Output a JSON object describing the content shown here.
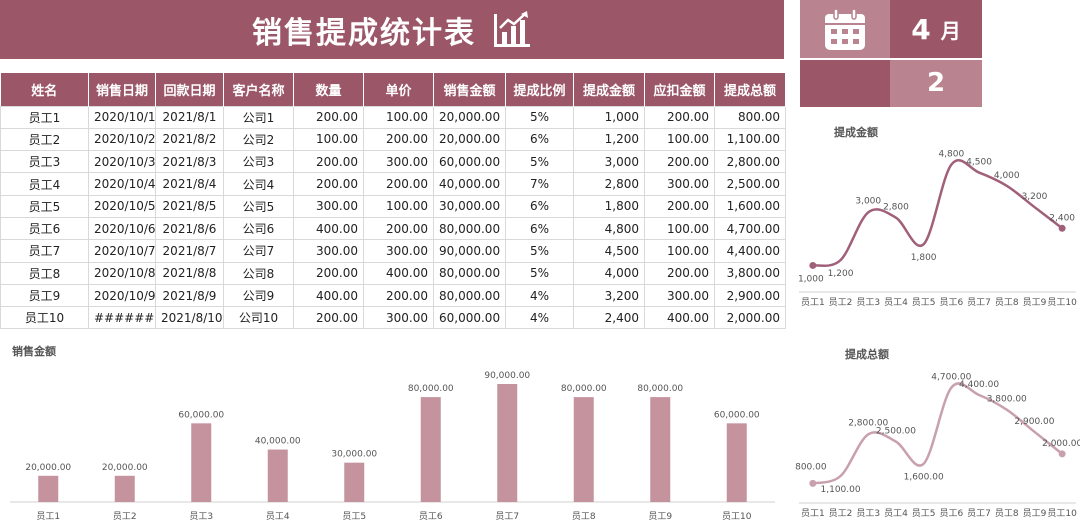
{
  "header": {
    "title": "销售提成统计表",
    "month_num": "4",
    "month_unit": "月",
    "number": "2",
    "title_icon": "chart-growth-icon",
    "calendar_icon": "calendar-icon"
  },
  "colors": {
    "primary": "#9b5668",
    "secondary": "#b9848f",
    "bar": "#c4939e",
    "line1": "#a0607a",
    "line2": "#c8a0b0"
  },
  "table": {
    "columns": [
      "姓名",
      "销售日期",
      "回款日期",
      "客户名称",
      "数量",
      "单价",
      "销售金额",
      "提成比例",
      "提成金额",
      "应扣金额",
      "提成总额"
    ],
    "rows": [
      [
        "员工1",
        "2020/10/1",
        "2021/8/1",
        "公司1",
        "200.00",
        "100.00",
        "20,000.00",
        "5%",
        "1,000",
        "200.00",
        "800.00"
      ],
      [
        "员工2",
        "2020/10/2",
        "2021/8/2",
        "公司2",
        "100.00",
        "200.00",
        "20,000.00",
        "6%",
        "1,200",
        "100.00",
        "1,100.00"
      ],
      [
        "员工3",
        "2020/10/3",
        "2021/8/3",
        "公司3",
        "200.00",
        "300.00",
        "60,000.00",
        "5%",
        "3,000",
        "200.00",
        "2,800.00"
      ],
      [
        "员工4",
        "2020/10/4",
        "2021/8/4",
        "公司4",
        "200.00",
        "200.00",
        "40,000.00",
        "7%",
        "2,800",
        "300.00",
        "2,500.00"
      ],
      [
        "员工5",
        "2020/10/5",
        "2021/8/5",
        "公司5",
        "300.00",
        "100.00",
        "30,000.00",
        "6%",
        "1,800",
        "200.00",
        "1,600.00"
      ],
      [
        "员工6",
        "2020/10/6",
        "2021/8/6",
        "公司6",
        "400.00",
        "200.00",
        "80,000.00",
        "6%",
        "4,800",
        "100.00",
        "4,700.00"
      ],
      [
        "员工7",
        "2020/10/7",
        "2021/8/7",
        "公司7",
        "300.00",
        "300.00",
        "90,000.00",
        "5%",
        "4,500",
        "100.00",
        "4,400.00"
      ],
      [
        "员工8",
        "2020/10/8",
        "2021/8/8",
        "公司8",
        "200.00",
        "400.00",
        "80,000.00",
        "5%",
        "4,000",
        "200.00",
        "3,800.00"
      ],
      [
        "员工9",
        "2020/10/9",
        "2021/8/9",
        "公司9",
        "400.00",
        "200.00",
        "80,000.00",
        "4%",
        "3,200",
        "300.00",
        "2,900.00"
      ],
      [
        "员工10",
        "########",
        "2021/8/10",
        "公司10",
        "200.00",
        "300.00",
        "60,000.00",
        "4%",
        "2,400",
        "400.00",
        "2,000.00"
      ]
    ]
  },
  "chart_data": [
    {
      "type": "bar",
      "title": "销售金额",
      "categories": [
        "员工1",
        "员工2",
        "员工3",
        "员工4",
        "员工5",
        "员工6",
        "员工7",
        "员工8",
        "员工9",
        "员工10"
      ],
      "values": [
        20000,
        20000,
        60000,
        40000,
        30000,
        80000,
        90000,
        80000,
        80000,
        60000
      ],
      "data_labels": [
        "20,000.00",
        "20,000.00",
        "60,000.00",
        "40,000.00",
        "30,000.00",
        "80,000.00",
        "90,000.00",
        "80,000.00",
        "80,000.00",
        "60,000.00"
      ],
      "ylim": [
        0,
        90000
      ],
      "grid": false
    },
    {
      "type": "line",
      "title": "提成金额",
      "categories": [
        "员工1",
        "员工2",
        "员工3",
        "员工4",
        "员工5",
        "员工6",
        "员工7",
        "员工8",
        "员工9",
        "员工10"
      ],
      "values": [
        1000,
        1200,
        3000,
        2800,
        1800,
        4800,
        4500,
        4000,
        3200,
        2400
      ],
      "data_labels": [
        "1,000",
        "1,200",
        "3,000",
        "2,800",
        "1,800",
        "4,800",
        "4,500",
        "4,000",
        "3,200",
        "2,400"
      ],
      "ylim": [
        0,
        5500
      ],
      "grid": false
    },
    {
      "type": "line",
      "title": "提成总额",
      "categories": [
        "员工1",
        "员工2",
        "员工3",
        "员工4",
        "员工5",
        "员工6",
        "员工7",
        "员工8",
        "员工9",
        "员工10"
      ],
      "values": [
        800,
        1100,
        2800,
        2500,
        1600,
        4700,
        4400,
        3800,
        2900,
        2000
      ],
      "data_labels": [
        "800.00",
        "1,100.00",
        "2,800.00",
        "2,500.00",
        "1,600.00",
        "4,700.00",
        "4,400.00",
        "3,800.00",
        "2,900.00",
        "2,000.00"
      ],
      "ylim": [
        0,
        5500
      ],
      "grid": false
    }
  ]
}
